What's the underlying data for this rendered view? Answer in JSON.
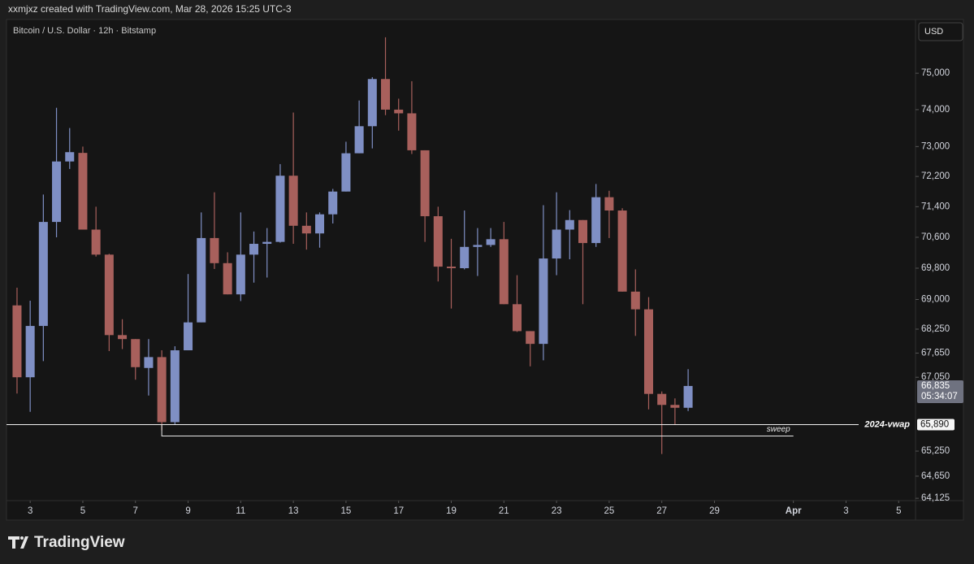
{
  "header": "xxmjxz created with TradingView.com, Mar 28, 2026 15:25 UTC-3",
  "brand": "TradingView",
  "chart_data": {
    "type": "candlestick",
    "title": "Bitcoin / U.S. Dollar · 12h · Bitstamp",
    "currency": "USD",
    "log_scale": true,
    "up_color": "#7f8fc4",
    "down_color": "#a8605c",
    "x": [
      2.5,
      3,
      3.5,
      4,
      4.5,
      5,
      5.5,
      6,
      6.5,
      7,
      7.5,
      8,
      8.5,
      9,
      9.5,
      10,
      10.5,
      11,
      11.5,
      12,
      12.5,
      13,
      13.5,
      14,
      14.5,
      15,
      15.5,
      16,
      16.5,
      17,
      17.5,
      18,
      18.5,
      19,
      19.5,
      20,
      20.5,
      21,
      21.5,
      22,
      22.5,
      23,
      23.5,
      24,
      24.5,
      25,
      25.5,
      26,
      26.5,
      27,
      27.5,
      28
    ],
    "open": [
      68850,
      67050,
      68330,
      71000,
      72600,
      72830,
      70800,
      70150,
      68100,
      68000,
      67280,
      67550,
      65950,
      67720,
      68420,
      70580,
      69930,
      69130,
      70150,
      70430,
      70480,
      72220,
      70900,
      70700,
      71200,
      71800,
      72820,
      73550,
      74840,
      74000,
      73900,
      72900,
      71150,
      69840,
      69800,
      70350,
      70400,
      70550,
      68880,
      68200,
      67880,
      70050,
      70800,
      71050,
      70450,
      71650,
      71300,
      69200,
      68750,
      66640,
      66370,
      66300
    ],
    "high": [
      69300,
      68970,
      71720,
      74050,
      73500,
      73000,
      71400,
      70170,
      68500,
      68000,
      68000,
      67720,
      67820,
      69650,
      71250,
      71780,
      70210,
      71250,
      70750,
      70840,
      72530,
      73920,
      71250,
      71250,
      71870,
      73130,
      74250,
      74890,
      76000,
      74300,
      74780,
      72900,
      71400,
      70560,
      71300,
      70840,
      70840,
      71000,
      69620,
      68200,
      71440,
      71780,
      71310,
      71050,
      72000,
      71820,
      71360,
      69770,
      69060,
      66700,
      66530,
      67250
    ],
    "low": [
      66650,
      66200,
      67450,
      70600,
      72400,
      70800,
      70100,
      67700,
      67750,
      66990,
      66600,
      65750,
      65890,
      67720,
      68420,
      69780,
      69130,
      68960,
      69430,
      69560,
      70460,
      70430,
      70280,
      70330,
      70960,
      71800,
      72820,
      72950,
      73850,
      73430,
      72800,
      70480,
      69460,
      68770,
      69770,
      69600,
      70350,
      68880,
      68180,
      67320,
      67470,
      69620,
      70030,
      68880,
      70350,
      70580,
      69200,
      68080,
      66260,
      65180,
      65900,
      66220
    ],
    "close": [
      67050,
      68330,
      71000,
      72600,
      72850,
      70800,
      70150,
      68100,
      68000,
      67300,
      67550,
      65950,
      67720,
      68420,
      70580,
      69930,
      69130,
      70150,
      70430,
      70480,
      72220,
      70900,
      70700,
      71200,
      71800,
      72820,
      73550,
      74840,
      74000,
      73900,
      72900,
      71150,
      69840,
      69800,
      70350,
      70400,
      70550,
      68880,
      68200,
      67880,
      70050,
      70800,
      71050,
      70450,
      71650,
      71300,
      69200,
      68750,
      66640,
      66370,
      66300,
      66835
    ],
    "ylim": [
      64070,
      76500
    ],
    "yticks": [
      {
        "value": 64125,
        "label": "64,125"
      },
      {
        "value": 64650,
        "label": "64,650"
      },
      {
        "value": 65250,
        "label": "65,250"
      },
      {
        "value": 67050,
        "label": "67,050"
      },
      {
        "value": 67650,
        "label": "67,650"
      },
      {
        "value": 68250,
        "label": "68,250"
      },
      {
        "value": 69000,
        "label": "69,000"
      },
      {
        "value": 69800,
        "label": "69,800"
      },
      {
        "value": 70600,
        "label": "70,600"
      },
      {
        "value": 71400,
        "label": "71,400"
      },
      {
        "value": 72200,
        "label": "72,200"
      },
      {
        "value": 73000,
        "label": "73,000"
      },
      {
        "value": 74000,
        "label": "74,000"
      },
      {
        "value": 75000,
        "label": "75,000"
      }
    ],
    "xlim": [
      2.1,
      36.64
    ],
    "xticks": [
      3,
      5,
      7,
      9,
      11,
      13,
      15,
      17,
      19,
      21,
      23,
      25,
      27,
      29,
      {
        "value": 32,
        "label": "Apr"
      },
      {
        "value": 34,
        "label": "3"
      },
      {
        "value": 36,
        "label": "5"
      }
    ],
    "current_price": {
      "value": 66835,
      "label": "66,835",
      "countdown": "05:34:07"
    },
    "vwap": {
      "name": "2024-vwap",
      "value": 65890,
      "label": "65,890"
    },
    "sweep": {
      "name": "sweep",
      "value": 65615,
      "x": [
        8,
        32
      ]
    }
  }
}
